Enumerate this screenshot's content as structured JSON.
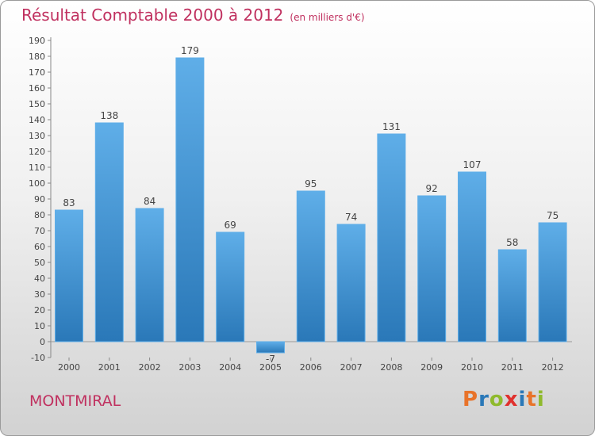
{
  "header": {
    "title": "Résultat Comptable 2000 à 2012",
    "subtitle": "(en milliers d'€)"
  },
  "footer": {
    "commune": "MONTMIRAL",
    "logo": "Proxiti"
  },
  "colors": {
    "title": "#c0305f",
    "bar_top": "#5faee8",
    "bar_bottom": "#2a78b8",
    "logo_letters": [
      "#e8732a",
      "#2a78b8",
      "#8fba2d",
      "#e0312e",
      "#2a78b8",
      "#e8732a",
      "#8fba2d"
    ]
  },
  "chart_data": {
    "type": "bar",
    "title": "Résultat Comptable 2000 à 2012",
    "subtitle": "(en milliers d'€)",
    "categories": [
      "2000",
      "2001",
      "2002",
      "2003",
      "2004",
      "2005",
      "2006",
      "2007",
      "2008",
      "2009",
      "2010",
      "2011",
      "2012"
    ],
    "values": [
      83,
      138,
      84,
      179,
      69,
      -7,
      95,
      74,
      131,
      92,
      107,
      58,
      75
    ],
    "data_labels": [
      "83",
      "138",
      "84",
      "179",
      "69",
      "-7",
      "95",
      "74",
      "131",
      "92",
      "107",
      "58",
      "75"
    ],
    "ylim": [
      -10,
      190
    ],
    "yticks": [
      -10,
      0,
      10,
      20,
      30,
      40,
      50,
      60,
      70,
      80,
      90,
      100,
      110,
      120,
      130,
      140,
      150,
      160,
      170,
      180,
      190
    ],
    "grid": false,
    "legend": "none"
  }
}
